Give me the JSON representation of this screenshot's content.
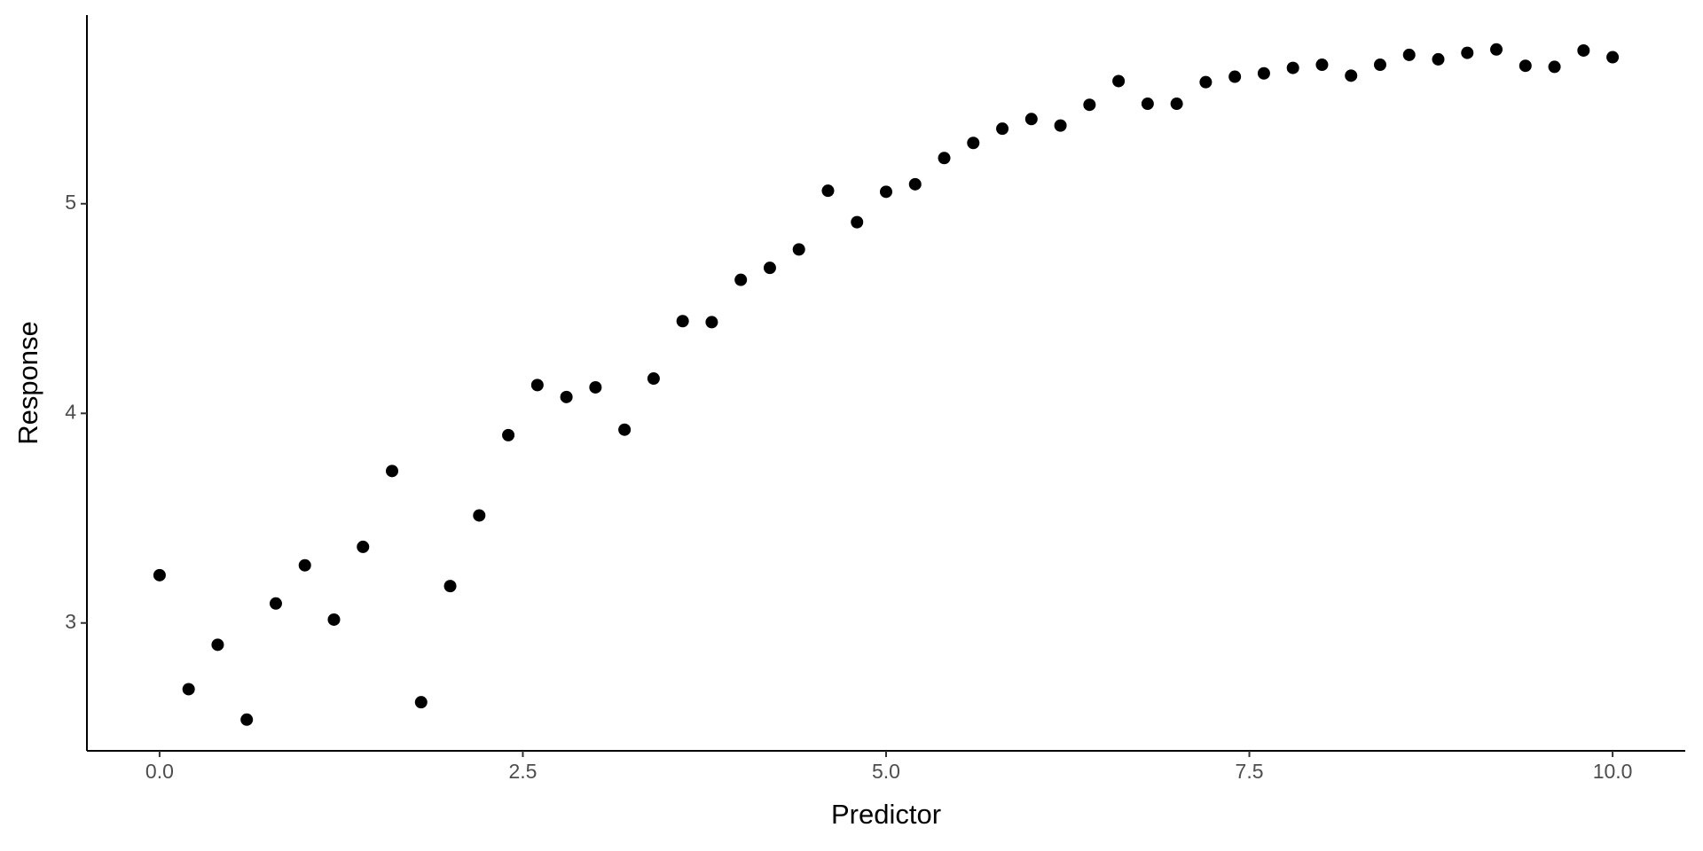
{
  "chart_data": {
    "type": "scatter",
    "x_label": "Predictor",
    "y_label": "Response",
    "x": [
      0,
      0.2,
      0.4,
      0.6,
      0.8,
      1.0,
      1.2,
      1.4,
      1.6,
      1.8,
      2.0,
      2.2,
      2.4,
      2.6,
      2.8,
      3.0,
      3.2,
      3.4,
      3.6,
      3.8,
      4.0,
      4.2,
      4.4,
      4.6,
      4.8,
      5.0,
      5.2,
      5.4,
      5.6,
      5.8,
      6.0,
      6.2,
      6.4,
      6.6,
      6.8,
      7.0,
      7.2,
      7.4,
      7.6,
      7.8,
      8.0,
      8.2,
      8.4,
      8.6,
      8.8,
      9.0,
      9.2,
      9.4,
      9.6,
      9.8,
      10.0
    ],
    "values": [
      3.228,
      2.684,
      2.896,
      2.539,
      3.093,
      3.275,
      3.016,
      3.363,
      3.725,
      2.622,
      3.176,
      3.513,
      3.896,
      4.135,
      4.078,
      4.124,
      3.922,
      4.166,
      4.44,
      4.435,
      4.637,
      4.694,
      4.782,
      5.062,
      4.912,
      5.057,
      5.093,
      5.218,
      5.29,
      5.358,
      5.404,
      5.373,
      5.472,
      5.585,
      5.477,
      5.477,
      5.58,
      5.606,
      5.622,
      5.648,
      5.663,
      5.611,
      5.663,
      5.71,
      5.689,
      5.72,
      5.736,
      5.658,
      5.653,
      5.731,
      5.699
    ],
    "color": "#000000",
    "xlim": [
      -0.5,
      10.5
    ],
    "xticks": [
      {
        "value": 0,
        "label": "0.0"
      },
      2.5,
      {
        "value": 5,
        "label": "5.0"
      },
      7.5,
      {
        "value": 10,
        "label": "10.0"
      }
    ],
    "ylim": [
      2.39,
      5.9
    ],
    "yticks": [
      3,
      4,
      5
    ],
    "grid": false
  }
}
